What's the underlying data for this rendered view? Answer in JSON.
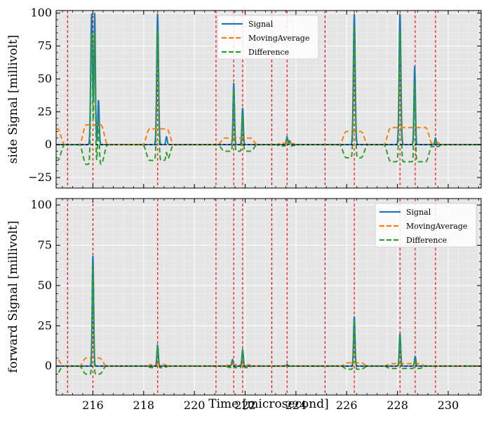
{
  "chart_data": [
    {
      "type": "line",
      "panel": "top",
      "ylabel": "side Signal [millivolt]",
      "xlabel": "",
      "xlim": [
        214.55,
        231.3
      ],
      "ylim": [
        -33,
        102
      ],
      "yticks": [
        -25,
        0,
        25,
        50,
        75,
        100
      ],
      "grid": true,
      "legend": "top-center",
      "vlines": [
        215.0,
        216.0,
        218.55,
        220.85,
        221.55,
        221.9,
        223.05,
        223.65,
        225.15,
        226.3,
        228.1,
        228.7,
        229.5
      ],
      "pulses": [
        {
          "t": 215.95,
          "a": 100,
          "w": 0.05
        },
        {
          "t": 216.07,
          "a": 100,
          "w": 0.04
        },
        {
          "t": 216.22,
          "a": 34,
          "w": 0.04
        },
        {
          "t": 218.55,
          "a": 100,
          "w": 0.05
        },
        {
          "t": 218.9,
          "a": 6,
          "w": 0.04
        },
        {
          "t": 221.55,
          "a": 47,
          "w": 0.04
        },
        {
          "t": 221.9,
          "a": 28,
          "w": 0.04
        },
        {
          "t": 223.65,
          "a": 6,
          "w": 0.04
        },
        {
          "t": 223.75,
          "a": 3,
          "w": 0.04
        },
        {
          "t": 226.3,
          "a": 100,
          "w": 0.05
        },
        {
          "t": 228.1,
          "a": 100,
          "w": 0.05
        },
        {
          "t": 228.68,
          "a": 60,
          "w": 0.04
        },
        {
          "t": 229.5,
          "a": 5,
          "w": 0.04
        }
      ],
      "moving_average": [
        {
          "start": 214.45,
          "end": 214.75,
          "level": 12
        },
        {
          "start": 215.6,
          "end": 216.45,
          "level": 15
        },
        {
          "start": 218.1,
          "end": 219.05,
          "level": 12
        },
        {
          "start": 221.05,
          "end": 222.35,
          "level": 5
        },
        {
          "start": 223.3,
          "end": 223.95,
          "level": 1
        },
        {
          "start": 225.85,
          "end": 226.7,
          "level": 10
        },
        {
          "start": 227.6,
          "end": 229.25,
          "level": 13
        },
        {
          "start": 229.35,
          "end": 229.65,
          "level": 2
        }
      ],
      "series": [
        {
          "name": "Signal",
          "color": "#1f77b4",
          "style": "solid"
        },
        {
          "name": "MovingAverage",
          "color": "#ff7f0e",
          "style": "dashed"
        },
        {
          "name": "Difference",
          "color": "#2ca02c",
          "style": "dashed"
        }
      ]
    },
    {
      "type": "line",
      "panel": "bottom",
      "ylabel": "forward Signal [millivolt]",
      "xlabel": "Time [microsecond]",
      "xlim": [
        214.55,
        231.3
      ],
      "ylim": [
        -18,
        104
      ],
      "yticks": [
        0,
        25,
        50,
        75,
        100
      ],
      "xticks": [
        216,
        218,
        220,
        222,
        224,
        226,
        228,
        230
      ],
      "grid": true,
      "legend": "top-right",
      "vlines": [
        215.0,
        216.0,
        218.55,
        220.85,
        221.55,
        221.9,
        223.05,
        223.65,
        225.15,
        226.3,
        228.1,
        228.7,
        229.5
      ],
      "pulses": [
        {
          "t": 216.0,
          "a": 69,
          "w": 0.04
        },
        {
          "t": 218.55,
          "a": 13,
          "w": 0.04
        },
        {
          "t": 221.5,
          "a": 4,
          "w": 0.04
        },
        {
          "t": 221.9,
          "a": 10,
          "w": 0.04
        },
        {
          "t": 223.65,
          "a": 1,
          "w": 0.04
        },
        {
          "t": 226.3,
          "a": 31,
          "w": 0.04
        },
        {
          "t": 228.1,
          "a": 20,
          "w": 0.04
        },
        {
          "t": 228.7,
          "a": 6,
          "w": 0.04
        }
      ],
      "moving_average": [
        {
          "start": 214.45,
          "end": 214.7,
          "level": 5
        },
        {
          "start": 215.6,
          "end": 216.4,
          "level": 5
        },
        {
          "start": 218.2,
          "end": 218.9,
          "level": 1
        },
        {
          "start": 221.3,
          "end": 222.2,
          "level": 1
        },
        {
          "start": 225.9,
          "end": 226.7,
          "level": 2
        },
        {
          "start": 227.6,
          "end": 229.0,
          "level": 1.5
        }
      ],
      "series": [
        {
          "name": "Signal",
          "color": "#1f77b4",
          "style": "solid"
        },
        {
          "name": "MovingAverage",
          "color": "#ff7f0e",
          "style": "dashed"
        },
        {
          "name": "Difference",
          "color": "#2ca02c",
          "style": "dashed"
        }
      ]
    }
  ]
}
